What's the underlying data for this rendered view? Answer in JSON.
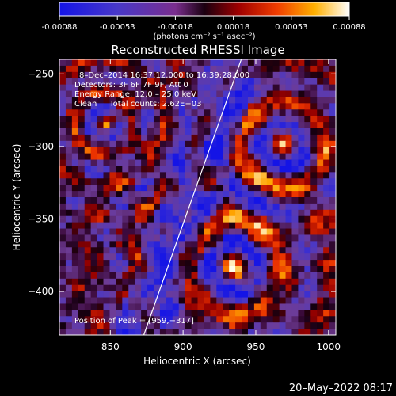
{
  "chart_data": {
    "type": "heatmap",
    "title": "Reconstructed RHESSI Image",
    "colorbar": {
      "ticks": [
        "-0.00088",
        "-0.00053",
        "-0.00018",
        "0.00018",
        "0.00053",
        "0.00088"
      ],
      "range": [
        -0.00088,
        0.00088
      ],
      "unit_label": "(photons cm⁻² s⁻¹ asec⁻²)"
    },
    "xlabel": "Heliocentric X (arcsec)",
    "ylabel": "Heliocentric Y (arcsec)",
    "xlim": [
      815,
      1005
    ],
    "ylim": [
      -430,
      -240
    ],
    "x_ticks": [
      850,
      900,
      950,
      1000
    ],
    "x_tick_labels": [
      "850",
      "900",
      "950",
      "1000"
    ],
    "y_ticks": [
      -250,
      -300,
      -350,
      -400
    ],
    "y_tick_labels": [
      "−250",
      "−300",
      "−350",
      "−400"
    ],
    "info_lines": [
      "8–Dec–2014 16:37:12.000 to 16:39:28.000",
      "Detectors: 3F 6F 7F 9F, Att 0",
      "Energy Range: 12.0 – 25.0 keV",
      "Clean     Total counts: 2.62E+03"
    ],
    "peak_label": "Position of Peak = [959,−317]",
    "peak": [
      959,
      -317
    ],
    "limb_line": {
      "x1": 873,
      "y1": -430,
      "x2": 940,
      "y2": -240
    },
    "colormap": "blue-purple-red-orange-yellow-white (RHESSI)",
    "grid": false
  },
  "footer": {
    "timestamp": "20–May–2022 08:17"
  }
}
